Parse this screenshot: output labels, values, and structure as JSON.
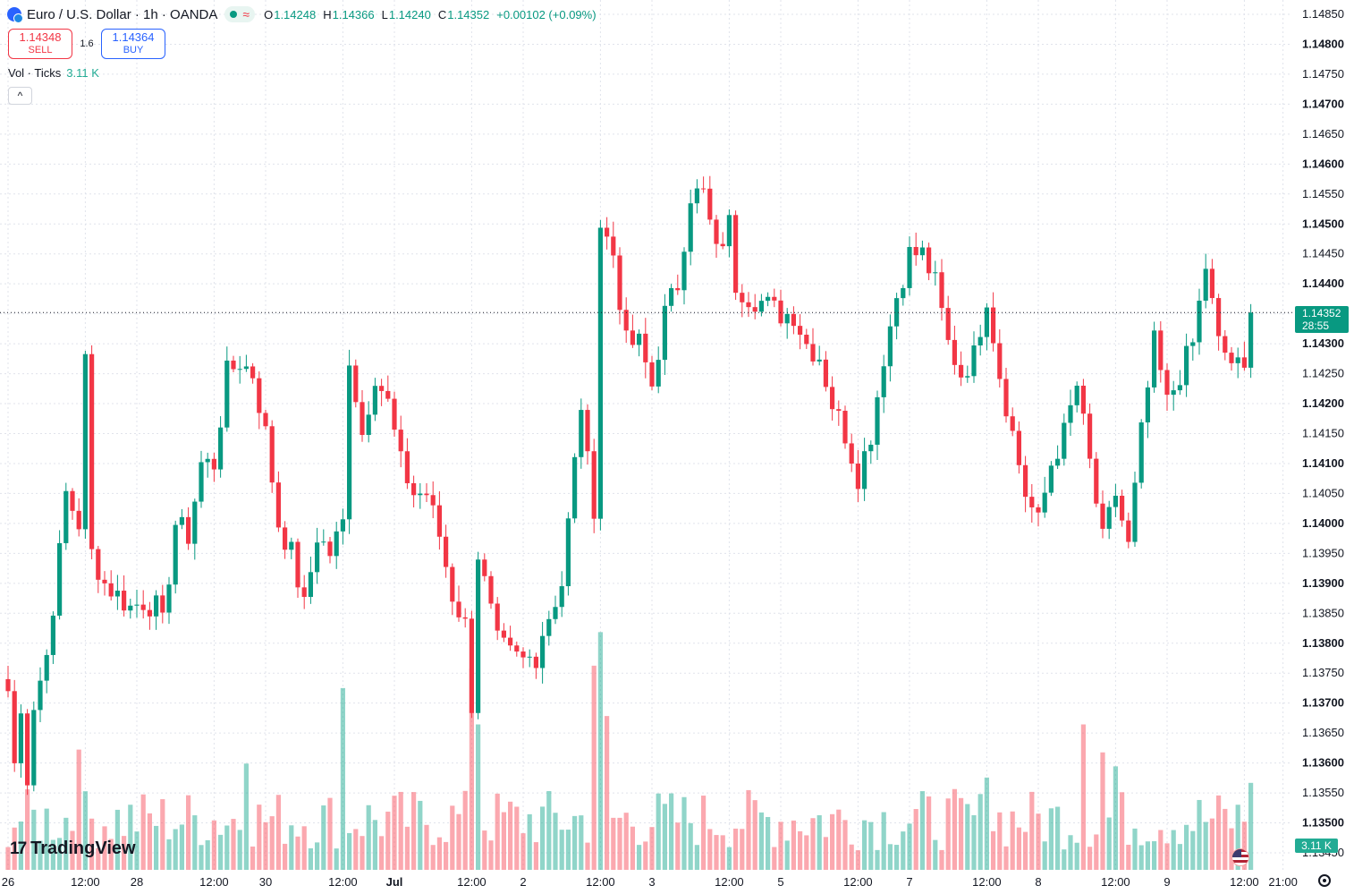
{
  "header": {
    "symbol": "Euro / U.S. Dollar · 1h · OANDA",
    "ohlc": [
      {
        "key": "O",
        "value": "1.14248"
      },
      {
        "key": "H",
        "value": "1.14366"
      },
      {
        "key": "L",
        "value": "1.14240"
      },
      {
        "key": "C",
        "value": "1.14352"
      }
    ],
    "change": "+0.00102 (+0.09%)"
  },
  "trade": {
    "sell_price": "1.14348",
    "sell_label": "SELL",
    "spread": "1.6",
    "buy_price": "1.14364",
    "buy_label": "BUY"
  },
  "volume_legend": {
    "label": "Vol · Ticks",
    "value": "3.11 K"
  },
  "price_tag": {
    "price": "1.14352",
    "countdown": "28:55"
  },
  "volume_tag": "3.11 K",
  "branding": "TradingView",
  "colors": {
    "up": "#089981",
    "down": "#f23645",
    "vol_up": "#22ab94",
    "vol_down": "#f7525f",
    "grid": "#e0e3eb"
  },
  "icons": [
    "currency-pair-icon",
    "market-status-dot-icon",
    "delay-wave-icon",
    "chevron-up-icon",
    "us-flag-icon",
    "settings-icon"
  ],
  "chart_data": {
    "type": "candlestick",
    "title": "",
    "xlabel": "",
    "ylabel": "",
    "ylim": [
      1.1345,
      1.1485
    ],
    "grid": true,
    "y_ticks": [
      "1.14850",
      "1.14800",
      "1.14750",
      "1.14700",
      "1.14650",
      "1.14600",
      "1.14550",
      "1.14500",
      "1.14450",
      "1.14400",
      "1.14350",
      "1.14300",
      "1.14250",
      "1.14200",
      "1.14150",
      "1.14100",
      "1.14050",
      "1.14000",
      "1.13950",
      "1.13900",
      "1.13850",
      "1.13800",
      "1.13750",
      "1.13700",
      "1.13650",
      "1.13600",
      "1.13550",
      "1.13500",
      "1.13450"
    ],
    "x_ticks": [
      {
        "bar": 0,
        "label": "26"
      },
      {
        "bar": 12,
        "label": "12:00"
      },
      {
        "bar": 20,
        "label": "28"
      },
      {
        "bar": 32,
        "label": "12:00"
      },
      {
        "bar": 40,
        "label": "30"
      },
      {
        "bar": 52,
        "label": "12:00"
      },
      {
        "bar": 60,
        "label": "Jul"
      },
      {
        "bar": 72,
        "label": "12:00"
      },
      {
        "bar": 80,
        "label": "2"
      },
      {
        "bar": 92,
        "label": "12:00"
      },
      {
        "bar": 100,
        "label": "3"
      },
      {
        "bar": 112,
        "label": "12:00"
      },
      {
        "bar": 120,
        "label": "5"
      },
      {
        "bar": 132,
        "label": "12:00"
      },
      {
        "bar": 140,
        "label": "7"
      },
      {
        "bar": 152,
        "label": "12:00"
      },
      {
        "bar": 160,
        "label": "8"
      },
      {
        "bar": 172,
        "label": "12:00"
      },
      {
        "bar": 180,
        "label": "9"
      },
      {
        "bar": 192,
        "label": "12:00"
      },
      {
        "bar": 198,
        "label": "21:00"
      }
    ],
    "last_price": 1.14352,
    "anchors": [
      [
        0,
        1.1372
      ],
      [
        1,
        1.136
      ],
      [
        2,
        1.1368
      ],
      [
        3,
        1.1358
      ],
      [
        4,
        1.137
      ],
      [
        6,
        1.1378
      ],
      [
        8,
        1.1395
      ],
      [
        9,
        1.1405
      ],
      [
        11,
        1.14
      ],
      [
        12,
        1.1427
      ],
      [
        13,
        1.1395
      ],
      [
        15,
        1.139
      ],
      [
        17,
        1.1388
      ],
      [
        19,
        1.1386
      ],
      [
        21,
        1.1387
      ],
      [
        23,
        1.1386
      ],
      [
        24,
        1.1383
      ],
      [
        26,
        1.14
      ],
      [
        28,
        1.1398
      ],
      [
        30,
        1.141
      ],
      [
        32,
        1.141
      ],
      [
        34,
        1.1425
      ],
      [
        36,
        1.1427
      ],
      [
        38,
        1.1425
      ],
      [
        40,
        1.1415
      ],
      [
        42,
        1.14
      ],
      [
        44,
        1.1395
      ],
      [
        46,
        1.1386
      ],
      [
        48,
        1.1398
      ],
      [
        50,
        1.1395
      ],
      [
        52,
        1.14
      ],
      [
        53,
        1.1428
      ],
      [
        55,
        1.1415
      ],
      [
        57,
        1.1425
      ],
      [
        59,
        1.142
      ],
      [
        61,
        1.141
      ],
      [
        63,
        1.1405
      ],
      [
        65,
        1.1405
      ],
      [
        67,
        1.1398
      ],
      [
        69,
        1.1388
      ],
      [
        71,
        1.1383
      ],
      [
        72,
        1.137
      ],
      [
        73,
        1.1395
      ],
      [
        75,
        1.1385
      ],
      [
        76,
        1.138
      ],
      [
        78,
        1.1378
      ],
      [
        80,
        1.1377
      ],
      [
        82,
        1.1378
      ],
      [
        83,
        1.1382
      ],
      [
        86,
        1.139
      ],
      [
        88,
        1.141
      ],
      [
        89,
        1.142
      ],
      [
        90,
        1.141
      ],
      [
        91,
        1.1403
      ],
      [
        92,
        1.145
      ],
      [
        94,
        1.1445
      ],
      [
        96,
        1.143
      ],
      [
        98,
        1.143
      ],
      [
        100,
        1.1423
      ],
      [
        102,
        1.1435
      ],
      [
        104,
        1.144
      ],
      [
        106,
        1.1455
      ],
      [
        108,
        1.1455
      ],
      [
        110,
        1.1445
      ],
      [
        112,
        1.145
      ],
      [
        113,
        1.144
      ],
      [
        115,
        1.1438
      ],
      [
        117,
        1.1437
      ],
      [
        120,
        1.1435
      ],
      [
        122,
        1.1435
      ],
      [
        124,
        1.143
      ],
      [
        126,
        1.1428
      ],
      [
        128,
        1.142
      ],
      [
        130,
        1.1415
      ],
      [
        132,
        1.1408
      ],
      [
        134,
        1.1415
      ],
      [
        136,
        1.1428
      ],
      [
        138,
        1.1438
      ],
      [
        140,
        1.1445
      ],
      [
        142,
        1.1445
      ],
      [
        144,
        1.144
      ],
      [
        146,
        1.143
      ],
      [
        148,
        1.1425
      ],
      [
        150,
        1.1428
      ],
      [
        152,
        1.1438
      ],
      [
        154,
        1.1425
      ],
      [
        156,
        1.1415
      ],
      [
        158,
        1.1405
      ],
      [
        160,
        1.14
      ],
      [
        162,
        1.141
      ],
      [
        164,
        1.1415
      ],
      [
        166,
        1.1423
      ],
      [
        168,
        1.141
      ],
      [
        170,
        1.1397
      ],
      [
        172,
        1.1405
      ],
      [
        174,
        1.1396
      ],
      [
        176,
        1.1415
      ],
      [
        178,
        1.143
      ],
      [
        180,
        1.142
      ],
      [
        182,
        1.1425
      ],
      [
        184,
        1.143
      ],
      [
        186,
        1.1443
      ],
      [
        188,
        1.143
      ],
      [
        190,
        1.1427
      ],
      [
        192,
        1.1425
      ],
      [
        193,
        1.1435
      ]
    ],
    "volume": {
      "ylim": [
        0,
        8000
      ],
      "last_value": 3110,
      "spikes": [
        [
          11,
          4300
        ],
        [
          37,
          3800
        ],
        [
          52,
          6500
        ],
        [
          72,
          7200
        ],
        [
          73,
          5200
        ],
        [
          91,
          7300
        ],
        [
          92,
          8500
        ],
        [
          93,
          5500
        ],
        [
          152,
          3300
        ],
        [
          167,
          5200
        ],
        [
          170,
          4200
        ],
        [
          172,
          3700
        ]
      ]
    }
  }
}
